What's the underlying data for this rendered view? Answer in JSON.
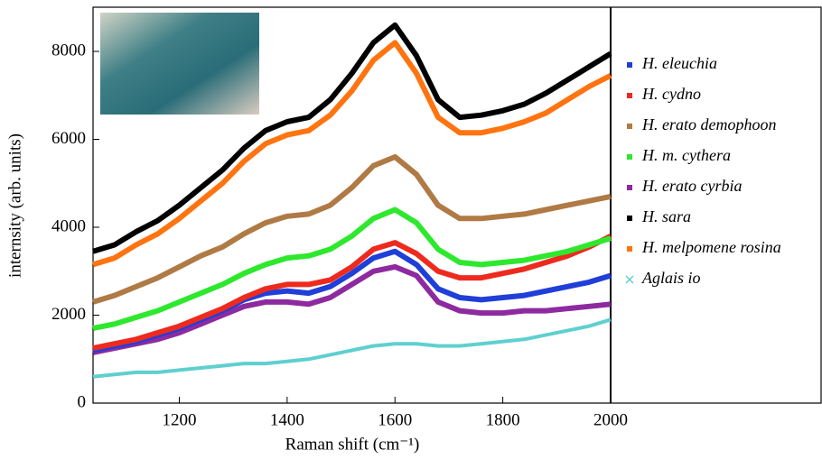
{
  "chart_data": {
    "type": "line",
    "ylabel": "internsity (arb. units)",
    "xlabel": "Raman shift (cm⁻¹)",
    "x": [
      1040,
      1080,
      1120,
      1160,
      1200,
      1240,
      1280,
      1320,
      1360,
      1400,
      1440,
      1480,
      1520,
      1560,
      1600,
      1640,
      1680,
      1720,
      1760,
      1800,
      1840,
      1880,
      1920,
      1960,
      2000
    ],
    "xlim": [
      1040,
      2000
    ],
    "xticks": [
      1200,
      1400,
      1600,
      1800,
      2000
    ],
    "ylim": [
      0,
      9000
    ],
    "yticks": [
      0,
      2000,
      4000,
      6000,
      8000
    ],
    "legend": "right",
    "series": [
      {
        "name": "H. eleuchia",
        "color": "#1f3fd8",
        "marker": "square",
        "values": [
          1200,
          1300,
          1400,
          1550,
          1700,
          1900,
          2100,
          2350,
          2500,
          2550,
          2500,
          2650,
          2950,
          3300,
          3450,
          3150,
          2600,
          2400,
          2350,
          2400,
          2450,
          2550,
          2650,
          2750,
          2900
        ]
      },
      {
        "name": "H. cydno",
        "color": "#ee2a1e",
        "marker": "square",
        "values": [
          1250,
          1350,
          1450,
          1600,
          1750,
          1950,
          2150,
          2400,
          2600,
          2700,
          2700,
          2800,
          3100,
          3500,
          3650,
          3400,
          3000,
          2850,
          2850,
          2950,
          3050,
          3200,
          3350,
          3550,
          3800
        ]
      },
      {
        "name": "H. erato demophoon",
        "color": "#b07a45",
        "marker": "square",
        "values": [
          2300,
          2450,
          2650,
          2850,
          3100,
          3350,
          3550,
          3850,
          4100,
          4250,
          4300,
          4500,
          4900,
          5400,
          5600,
          5200,
          4500,
          4200,
          4200,
          4250,
          4300,
          4400,
          4500,
          4600,
          4700
        ]
      },
      {
        "name": "H. m. cythera",
        "color": "#2ee82e",
        "marker": "square",
        "values": [
          1700,
          1800,
          1950,
          2100,
          2300,
          2500,
          2700,
          2950,
          3150,
          3300,
          3350,
          3500,
          3800,
          4200,
          4400,
          4100,
          3500,
          3200,
          3150,
          3200,
          3250,
          3350,
          3450,
          3600,
          3750
        ]
      },
      {
        "name": "H. erato cyrbia",
        "color": "#8e2aa0",
        "marker": "square",
        "values": [
          1150,
          1250,
          1350,
          1450,
          1600,
          1800,
          2000,
          2200,
          2300,
          2300,
          2250,
          2400,
          2700,
          3000,
          3100,
          2900,
          2300,
          2100,
          2050,
          2050,
          2100,
          2100,
          2150,
          2200,
          2250
        ]
      },
      {
        "name": "H. sara",
        "color": "#000000",
        "marker": "square",
        "values": [
          3450,
          3600,
          3900,
          4150,
          4500,
          4900,
          5300,
          5800,
          6200,
          6400,
          6500,
          6900,
          7500,
          8200,
          8600,
          7900,
          6900,
          6500,
          6550,
          6650,
          6800,
          7050,
          7350,
          7650,
          7950
        ]
      },
      {
        "name": "H. melpomene rosina",
        "color": "#ff7410",
        "marker": "square",
        "values": [
          3150,
          3300,
          3600,
          3850,
          4200,
          4600,
          5000,
          5500,
          5900,
          6100,
          6200,
          6550,
          7100,
          7800,
          8200,
          7500,
          6500,
          6150,
          6150,
          6250,
          6400,
          6600,
          6900,
          7200,
          7450
        ]
      },
      {
        "name": "Aglais io",
        "color": "#5fcfcf",
        "marker": "cross",
        "values": [
          600,
          650,
          700,
          700,
          750,
          800,
          850,
          900,
          900,
          950,
          1000,
          1100,
          1200,
          1300,
          1350,
          1350,
          1300,
          1300,
          1350,
          1400,
          1450,
          1550,
          1650,
          1750,
          1900
        ]
      }
    ]
  }
}
